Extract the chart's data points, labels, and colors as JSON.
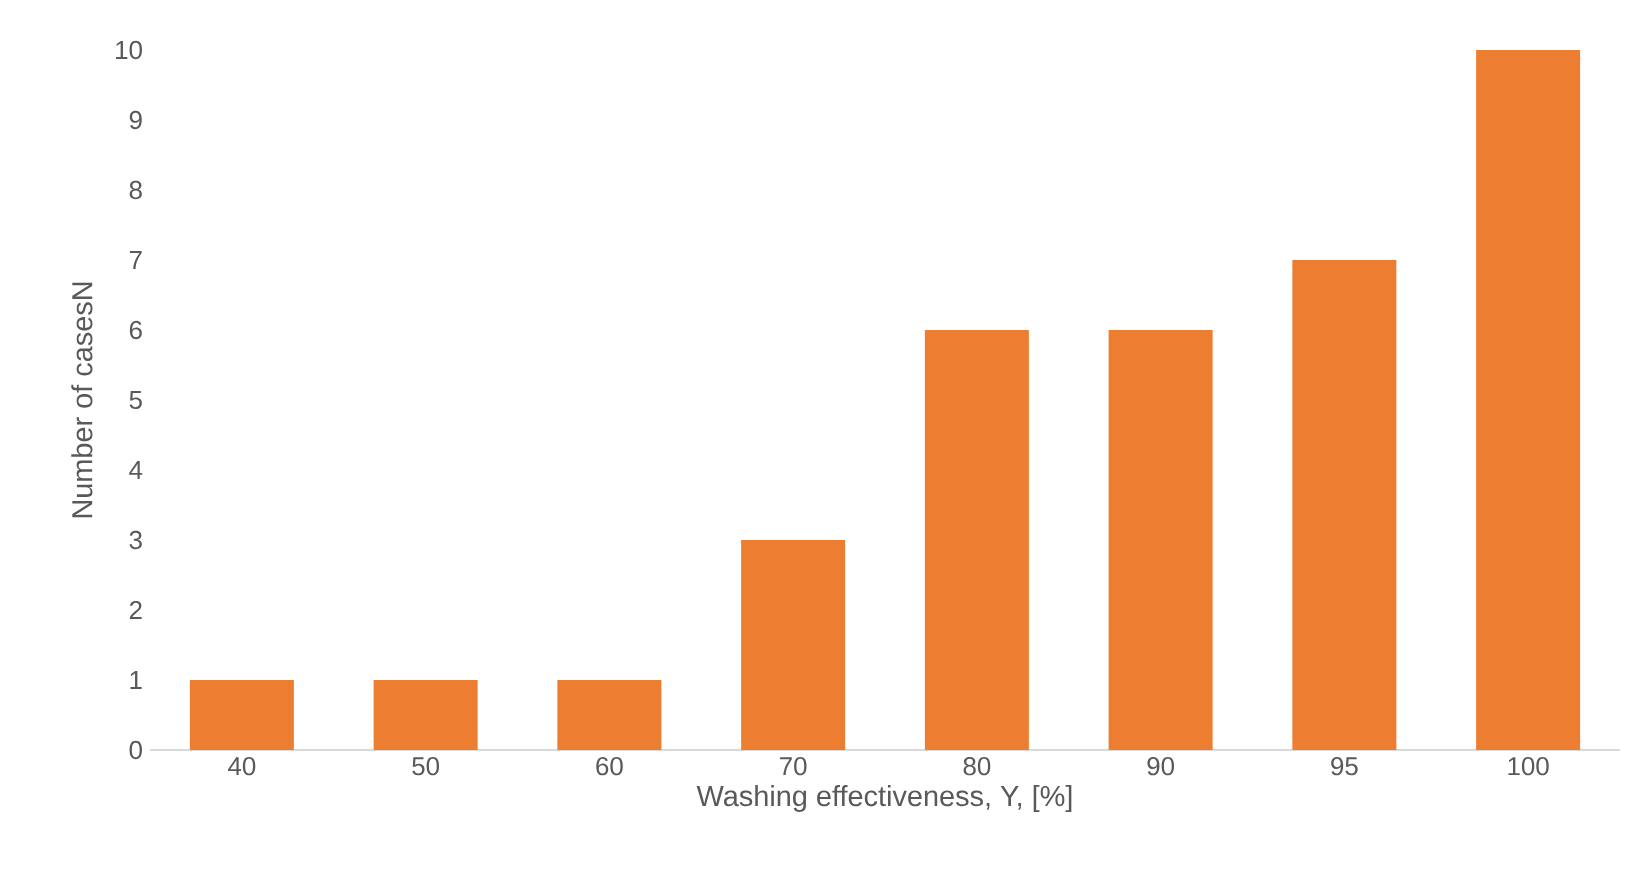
{
  "chart_data": {
    "type": "bar",
    "xlabel": "Washing effectiveness, Y, [%]",
    "ylabel": "Number of casesN",
    "categories": [
      "40",
      "50",
      "60",
      "70",
      "80",
      "90",
      "95",
      "100"
    ],
    "values": [
      1,
      1,
      1,
      3,
      6,
      6,
      7,
      10
    ],
    "color": "#ed7d31",
    "ylim": [
      0,
      10
    ],
    "yticks": [
      0,
      1,
      2,
      3,
      4,
      5,
      6,
      7,
      8,
      9,
      10
    ]
  }
}
